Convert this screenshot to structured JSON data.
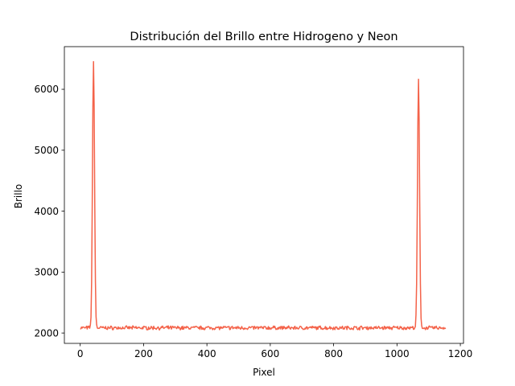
{
  "chart_data": {
    "type": "line",
    "title": "Distribución del Brillo entre Hidrogeno y Neon",
    "xlabel": "Pixel",
    "ylabel": "Brillo",
    "xlim": [
      -50,
      1210
    ],
    "ylim": [
      1830,
      6700
    ],
    "x_ticks": [
      0,
      200,
      400,
      600,
      800,
      1000,
      1200
    ],
    "y_ticks": [
      2000,
      3000,
      4000,
      5000,
      6000
    ],
    "grid": false,
    "legend": "none",
    "series": [
      {
        "color": "#f4634a",
        "baseline": 2085,
        "x_range": [
          0,
          1155
        ],
        "peaks": [
          {
            "x": 42,
            "y": 6480
          },
          {
            "x": 1068,
            "y": 6170
          }
        ]
      }
    ]
  }
}
